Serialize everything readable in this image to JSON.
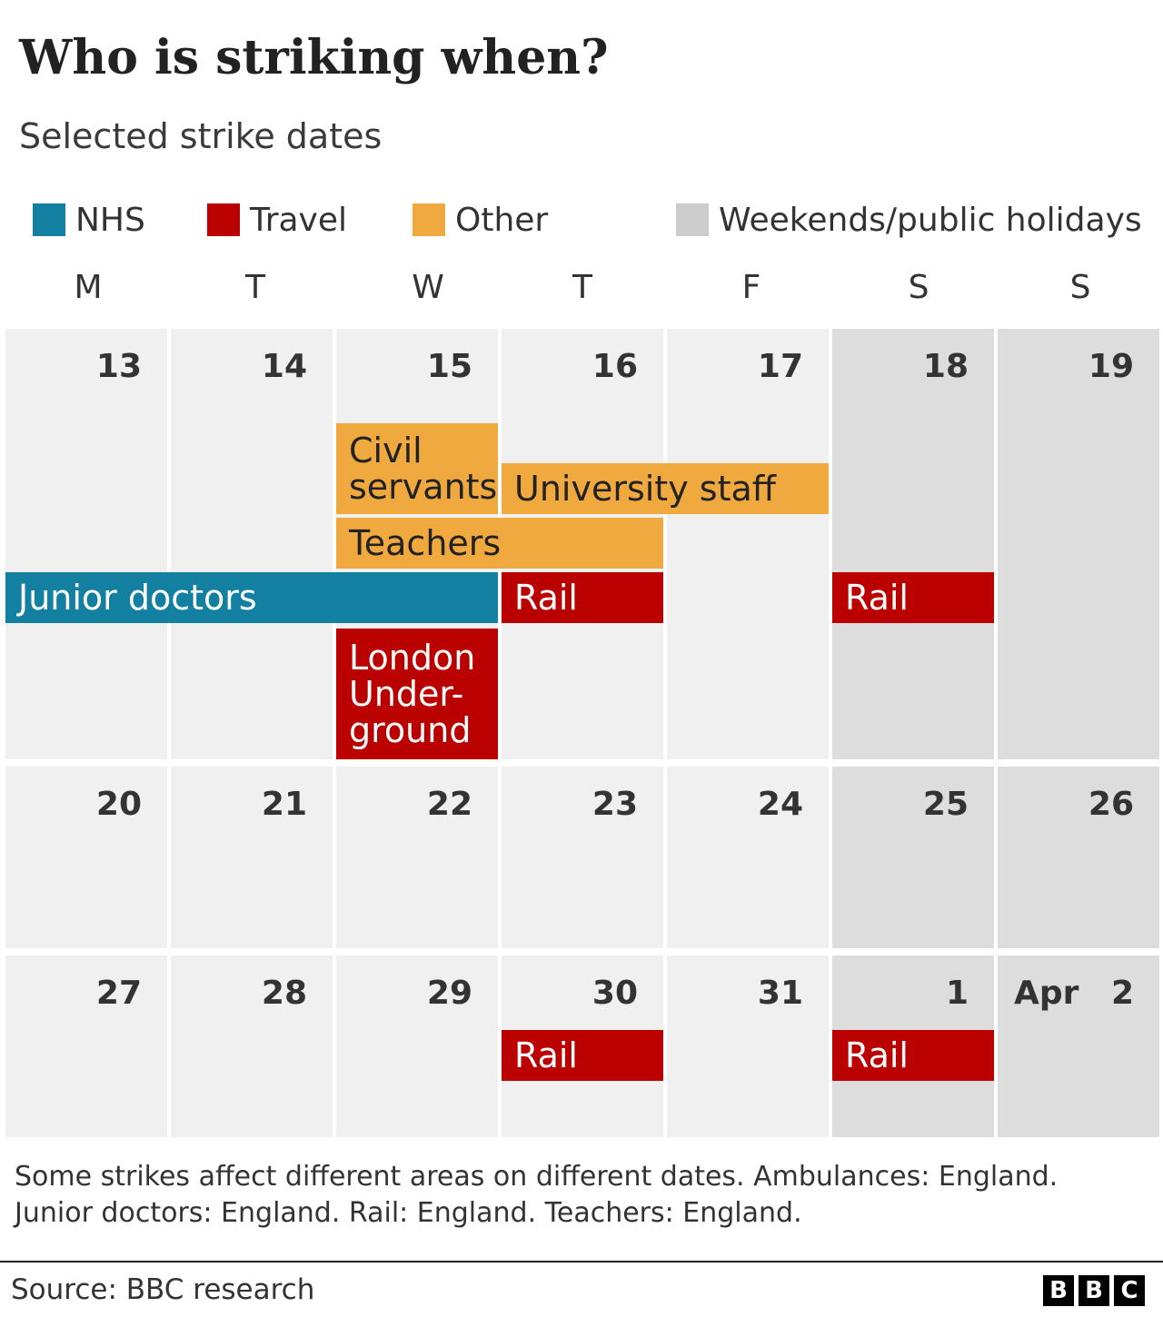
{
  "title": "Who is striking when?",
  "subtitle": "Selected strike dates",
  "legend": [
    {
      "label": "NHS",
      "color": "#1380a1"
    },
    {
      "label": "Travel",
      "color": "#bb0000"
    },
    {
      "label": "Other",
      "color": "#f0a93e"
    },
    {
      "label": "Weekends/public holidays",
      "color": "#cccccc"
    }
  ],
  "day_headers": [
    "M",
    "T",
    "W",
    "T",
    "F",
    "S",
    "S"
  ],
  "chart_data": {
    "type": "table",
    "weeks": [
      {
        "days": [
          "13",
          "14",
          "15",
          "16",
          "17",
          "18",
          "19"
        ]
      },
      {
        "days": [
          "20",
          "21",
          "22",
          "23",
          "24",
          "25",
          "26"
        ]
      },
      {
        "days": [
          "27",
          "28",
          "29",
          "30",
          "31",
          "1",
          "2"
        ],
        "month_label": "Apr"
      }
    ],
    "weekend_columns": [
      5,
      6
    ],
    "strikes": [
      {
        "label": "Civil servants",
        "category": "Other",
        "week": 0,
        "start_col": 2,
        "end_col": 2
      },
      {
        "label": "University staff",
        "category": "Other",
        "week": 0,
        "start_col": 3,
        "end_col": 4
      },
      {
        "label": "Teachers",
        "category": "Other",
        "week": 0,
        "start_col": 2,
        "end_col": 3
      },
      {
        "label": "Junior doctors",
        "category": "NHS",
        "week": 0,
        "start_col": 0,
        "end_col": 2
      },
      {
        "label": "Rail",
        "category": "Travel",
        "week": 0,
        "start_col": 3,
        "end_col": 3
      },
      {
        "label": "Rail",
        "category": "Travel",
        "week": 0,
        "start_col": 5,
        "end_col": 5
      },
      {
        "label": "London\nUnder-\nground",
        "category": "Travel",
        "week": 0,
        "start_col": 2,
        "end_col": 2
      },
      {
        "label": "Rail",
        "category": "Travel",
        "week": 2,
        "start_col": 3,
        "end_col": 3
      },
      {
        "label": "Rail",
        "category": "Travel",
        "week": 2,
        "start_col": 5,
        "end_col": 5
      }
    ]
  },
  "footnote": "Some strikes affect different areas on different dates. Ambulances: England. Junior doctors: England. Rail: England. Teachers: England.",
  "source": "Source: BBC research",
  "logo": [
    "B",
    "B",
    "C"
  ]
}
